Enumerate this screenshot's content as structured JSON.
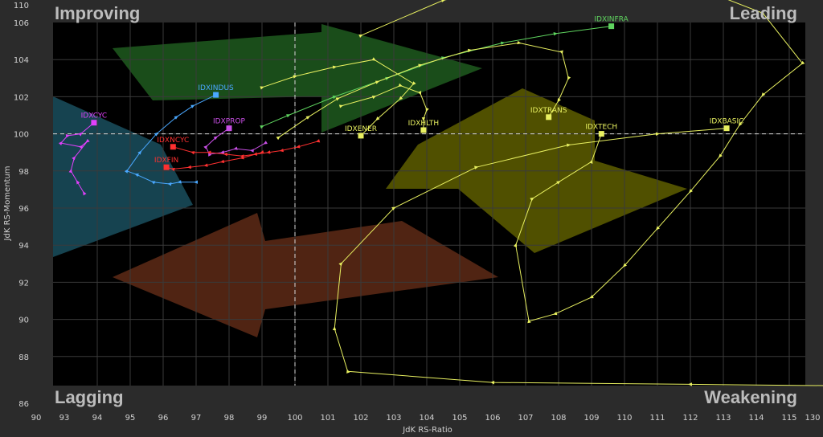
{
  "chart_data": {
    "type": "scatter",
    "subtype": "relative-rotation-graph",
    "title": "",
    "xlabel": "JdK RS-Ratio",
    "ylabel": "JdK RS-Momentum",
    "xlim": [
      90,
      130
    ],
    "ylim": [
      86,
      110
    ],
    "x_ticks": [
      90,
      93,
      94,
      95,
      96,
      97,
      98,
      99,
      100,
      101,
      102,
      103,
      104,
      105,
      106,
      107,
      108,
      109,
      110,
      111,
      112,
      113,
      114,
      115,
      130
    ],
    "y_ticks": [
      86,
      88,
      90,
      92,
      94,
      96,
      98,
      100,
      102,
      104,
      106,
      110
    ],
    "x_tick_labels": [
      "90",
      "93",
      "94",
      "95",
      "96",
      "97",
      "98",
      "99",
      "100",
      "101",
      "102",
      "103",
      "104",
      "105",
      "106",
      "107",
      "108",
      "109",
      "110",
      "111",
      "112",
      "113",
      "114",
      "115",
      "130"
    ],
    "y_tick_labels": [
      "86",
      "88",
      "90",
      "92",
      "94",
      "96",
      "98",
      "100",
      "102",
      "104",
      "106",
      "110"
    ],
    "center": [
      100,
      100
    ],
    "grid": true,
    "quadrants": {
      "top_left": "Improving",
      "top_right": "Leading",
      "bottom_left": "Lagging",
      "bottom_right": "Weakening"
    },
    "quadrant_colors": {
      "improving": "#1a4f5e",
      "leading": "#1f5a1f",
      "weakening": "#5e5e00",
      "lagging": "#5e2a16"
    },
    "series": [
      {
        "name": "IDXCYC",
        "color": "#e040fb",
        "x": [
          93.6,
          93.4,
          93.2,
          93.3,
          93.7,
          93.5,
          92.9,
          93.1,
          93.5,
          93.9
        ],
        "y": [
          96.8,
          97.4,
          98.0,
          98.7,
          99.6,
          99.3,
          99.5,
          99.9,
          100.0,
          100.6
        ]
      },
      {
        "name": "IDXINDUS",
        "color": "#4aa8ff",
        "x": [
          97.0,
          96.5,
          96.2,
          95.7,
          95.2,
          94.9,
          95.3,
          95.8,
          96.4,
          96.9,
          97.6
        ],
        "y": [
          97.4,
          97.4,
          97.3,
          97.4,
          97.8,
          98.0,
          99.0,
          100.0,
          100.9,
          101.5,
          102.1
        ]
      },
      {
        "name": "IDXPROP",
        "color": "#c94fe6",
        "x": [
          99.1,
          98.7,
          98.2,
          97.8,
          97.4,
          97.3,
          97.6,
          98.0
        ],
        "y": [
          99.5,
          99.1,
          99.2,
          99.0,
          98.9,
          99.3,
          99.8,
          100.3
        ]
      },
      {
        "name": "IDXNCYC",
        "color": "#ff3030",
        "x": [
          100.7,
          100.1,
          99.6,
          99.2,
          98.8,
          98.4,
          97.9,
          97.4,
          96.9,
          96.3
        ],
        "y": [
          99.6,
          99.3,
          99.1,
          99.0,
          98.9,
          98.8,
          98.9,
          99.0,
          99.0,
          99.3
        ]
      },
      {
        "name": "IDXFIN",
        "color": "#ff3030",
        "x": [
          99.0,
          98.4,
          97.8,
          97.3,
          96.8,
          96.3,
          96.1
        ],
        "y": [
          99.0,
          98.7,
          98.5,
          98.3,
          98.2,
          98.1,
          98.2
        ]
      },
      {
        "name": "IDXINFRA",
        "color": "#5fd45f",
        "x": [
          99.0,
          99.8,
          101.2,
          102.8,
          104.5,
          106.3,
          107.9,
          109.6
        ],
        "y": [
          100.4,
          101.0,
          102.0,
          103.0,
          104.1,
          104.9,
          105.4,
          105.8
        ]
      },
      {
        "name": "IDXTRANS",
        "color": "#e8f060",
        "x": [
          99.5,
          100.4,
          101.3,
          102.5,
          103.8,
          105.3,
          106.8,
          108.1,
          108.3,
          108.0,
          107.7
        ],
        "y": [
          99.8,
          100.9,
          101.9,
          102.8,
          103.7,
          104.5,
          104.9,
          104.4,
          103.0,
          101.8,
          100.9
        ]
      },
      {
        "name": "IDXENER",
        "color": "#e8f060",
        "x": [
          99.0,
          100.0,
          101.2,
          102.4,
          103.6,
          103.2,
          102.5,
          102.0
        ],
        "y": [
          102.5,
          103.1,
          103.6,
          104.0,
          102.7,
          101.9,
          100.8,
          99.9
        ]
      },
      {
        "name": "IDXHLTH",
        "color": "#e8f060",
        "x": [
          101.4,
          102.4,
          103.2,
          103.8,
          104.0,
          103.9,
          103.9
        ],
        "y": [
          101.5,
          102.0,
          102.6,
          102.2,
          101.3,
          100.8,
          100.2
        ]
      },
      {
        "name": "IDXTECH",
        "color": "#e8f060",
        "x": [
          102.0,
          104.5,
          107.0,
          110.0,
          112.9,
          114.2,
          115.4,
          114.2,
          113.5,
          112.9,
          112.0,
          111.0,
          110.0,
          109.0,
          107.9,
          107.1,
          106.7,
          107.2,
          108.0,
          109.0,
          109.3
        ],
        "y": [
          105.3,
          107.2,
          108.0,
          107.9,
          107.4,
          106.5,
          103.8,
          102.1,
          100.5,
          98.8,
          96.9,
          94.9,
          92.9,
          91.2,
          90.3,
          89.9,
          94.0,
          96.5,
          97.4,
          98.5,
          100.0
        ]
      },
      {
        "name": "IDXBASIC",
        "color": "#e8f060",
        "x": [
          129.5,
          128.7,
          127.6,
          124.0,
          118.0,
          112.0,
          106.0,
          101.6,
          101.2,
          101.4,
          103.0,
          105.5,
          108.3,
          111.0,
          113.1
        ],
        "y": [
          87.5,
          86.8,
          86.5,
          86.4,
          86.4,
          86.5,
          86.6,
          87.2,
          89.5,
          93.0,
          96.0,
          98.2,
          99.4,
          100.0,
          100.3
        ]
      }
    ]
  }
}
